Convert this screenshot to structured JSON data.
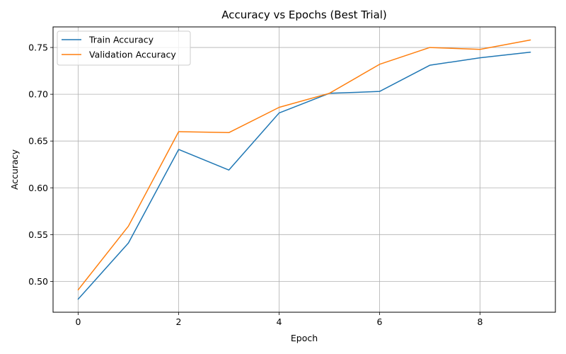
{
  "chart_data": {
    "type": "line",
    "title": "Accuracy vs Epochs (Best Trial)",
    "xlabel": "Epoch",
    "ylabel": "Accuracy",
    "xlim": [
      -0.5,
      9.5
    ],
    "ylim": [
      0.467,
      0.772
    ],
    "xticks": [
      0,
      2,
      4,
      6,
      8
    ],
    "yticks": [
      0.5,
      0.55,
      0.6,
      0.65,
      0.7,
      0.75
    ],
    "xtick_labels": [
      "0",
      "2",
      "4",
      "6",
      "8"
    ],
    "ytick_labels": [
      "0.50",
      "0.55",
      "0.60",
      "0.65",
      "0.70",
      "0.75"
    ],
    "grid": true,
    "legend_position": "top-left",
    "x": [
      0,
      1,
      2,
      3,
      4,
      5,
      6,
      7,
      8,
      9
    ],
    "series": [
      {
        "name": "Train Accuracy",
        "color": "#1f77b4",
        "values": [
          0.481,
          0.541,
          0.641,
          0.619,
          0.68,
          0.701,
          0.703,
          0.731,
          0.739,
          0.745
        ]
      },
      {
        "name": "Validation Accuracy",
        "color": "#ff7f0e",
        "values": [
          0.491,
          0.559,
          0.66,
          0.659,
          0.686,
          0.701,
          0.732,
          0.75,
          0.748,
          0.758
        ]
      }
    ]
  }
}
